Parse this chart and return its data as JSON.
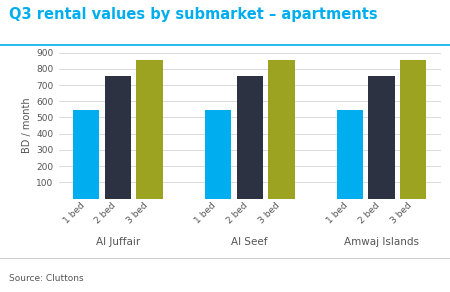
{
  "title": "Q3 rental values by submarket – apartments",
  "ylabel": "BD / month",
  "source": "Source: Cluttons",
  "groups": [
    "Al Juffair",
    "Al Seef",
    "Amwaj Islands"
  ],
  "bed_labels": [
    "1 bed",
    "2 bed",
    "3 bed"
  ],
  "values": {
    "Al Juffair": [
      545,
      755,
      855
    ],
    "Al Seef": [
      545,
      755,
      855
    ],
    "Amwaj Islands": [
      545,
      755,
      855
    ]
  },
  "bar_colors": [
    "#00AEEF",
    "#2D3242",
    "#9BA320"
  ],
  "ylim": [
    0,
    900
  ],
  "yticks": [
    0,
    100,
    200,
    300,
    400,
    500,
    600,
    700,
    800,
    900
  ],
  "title_color": "#00AEEF",
  "title_fontsize": 10.5,
  "axis_label_fontsize": 7,
  "tick_fontsize": 6.5,
  "source_fontsize": 6.5,
  "group_label_fontsize": 7.5,
  "background_color": "#ffffff",
  "grid_color": "#cccccc",
  "bar_width": 0.2,
  "title_line_color": "#00AEEF",
  "source_line_color": "#cccccc"
}
